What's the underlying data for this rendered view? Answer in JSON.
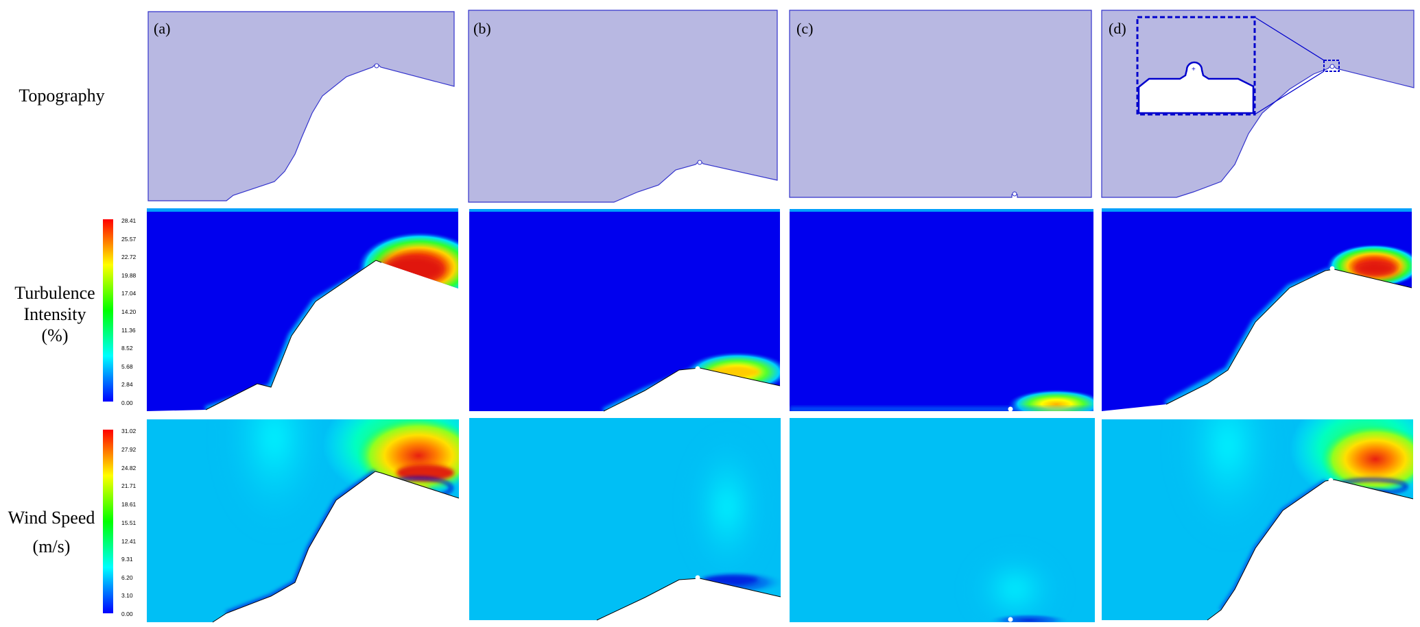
{
  "row_labels": {
    "topography": "Topography",
    "turbulence_line1": "Turbulence",
    "turbulence_line2": "Intensity",
    "turbulence_line3": "(%)",
    "wind_line1": "Wind Speed",
    "wind_line2": "(m/s)"
  },
  "panel_labels": [
    "(a)",
    "(b)",
    "(c)",
    "(d)"
  ],
  "turbulence_colorbar": {
    "ticks": [
      "28.41",
      "25.57",
      "22.72",
      "19.88",
      "17.04",
      "14.20",
      "11.36",
      "8.52",
      "5.68",
      "2.84",
      "0.00"
    ],
    "colors": [
      "#ff0000",
      "#ffff00",
      "#00ff00",
      "#00ffff",
      "#0000ff"
    ]
  },
  "wind_colorbar": {
    "ticks": [
      "31.02",
      "27.92",
      "24.82",
      "21.71",
      "18.61",
      "15.51",
      "12.41",
      "9.31",
      "6.20",
      "3.10",
      "0.00"
    ],
    "colors": [
      "#ff0000",
      "#ffff00",
      "#00ff00",
      "#00ffff",
      "#0000ff"
    ]
  },
  "colors": {
    "domain_fill": "#b8b8e2",
    "domain_stroke": "#3333cc",
    "ti_background": "#0000ee",
    "wind_background": "#00bff5",
    "inset_box": "#0000cc"
  }
}
